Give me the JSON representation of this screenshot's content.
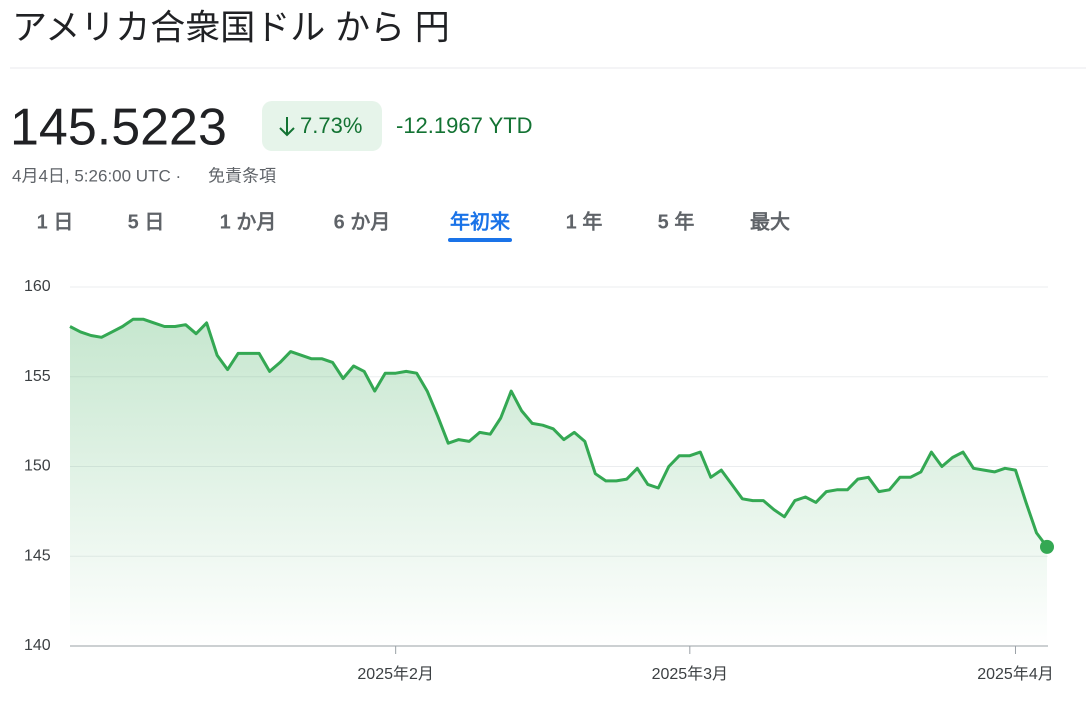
{
  "header": {
    "title": "アメリカ合衆国ドル から 円",
    "price": "145.5223",
    "change_pct": "7.73%",
    "change": "-12.1967 YTD",
    "timestamp": "4月4日, 5:26:00 UTC ·",
    "disclaimer": "免責条項"
  },
  "tabs": [
    "1 日",
    "5 日",
    "1 か月",
    "6 か月",
    "年初来",
    "1 年",
    "5 年",
    "最大"
  ],
  "active_tab": 4,
  "chart_data": {
    "type": "line",
    "color": "#34a853",
    "grid": true,
    "ylim": [
      140,
      160
    ],
    "yticks": [
      140,
      145,
      150,
      155,
      160
    ],
    "categories": [
      null,
      null,
      null,
      null,
      null,
      null,
      null,
      null,
      null,
      null,
      null,
      null,
      null,
      null,
      null,
      null,
      null,
      null,
      null,
      null,
      null,
      null,
      null,
      null,
      null,
      null,
      null,
      null,
      null,
      null,
      null,
      "2025年2月",
      null,
      null,
      null,
      null,
      null,
      null,
      null,
      null,
      null,
      null,
      null,
      null,
      null,
      null,
      null,
      null,
      null,
      null,
      null,
      null,
      null,
      null,
      null,
      null,
      null,
      null,
      null,
      "2025年3月",
      null,
      null,
      null,
      null,
      null,
      null,
      null,
      null,
      null,
      null,
      null,
      null,
      null,
      null,
      null,
      null,
      null,
      null,
      null,
      null,
      null,
      null,
      null,
      null,
      null,
      null,
      null,
      null,
      null,
      null,
      "2025年4月",
      null,
      null,
      null
    ],
    "values": [
      157.8,
      157.5,
      157.3,
      157.2,
      157.5,
      157.8,
      158.2,
      158.2,
      158.0,
      157.8,
      157.8,
      157.9,
      157.4,
      158.0,
      156.2,
      155.4,
      156.3,
      156.3,
      156.3,
      155.3,
      155.8,
      156.4,
      156.2,
      156.0,
      156.0,
      155.8,
      154.9,
      155.6,
      155.3,
      154.2,
      155.2,
      155.2,
      155.3,
      155.2,
      154.2,
      152.8,
      151.3,
      151.5,
      151.4,
      151.9,
      151.8,
      152.7,
      154.2,
      153.1,
      152.4,
      152.3,
      152.1,
      151.5,
      151.9,
      151.4,
      149.6,
      149.2,
      149.2,
      149.3,
      149.9,
      149.0,
      148.8,
      150.0,
      150.6,
      150.6,
      150.8,
      149.4,
      149.8,
      149.0,
      148.2,
      148.1,
      148.1,
      147.6,
      147.2,
      148.1,
      148.3,
      148.0,
      148.6,
      148.7,
      148.7,
      149.3,
      149.4,
      148.6,
      148.7,
      149.4,
      149.4,
      149.7,
      150.8,
      150.0,
      150.5,
      150.8,
      149.9,
      149.8,
      149.7,
      149.9,
      149.8,
      148.0,
      146.3,
      145.5223
    ]
  }
}
